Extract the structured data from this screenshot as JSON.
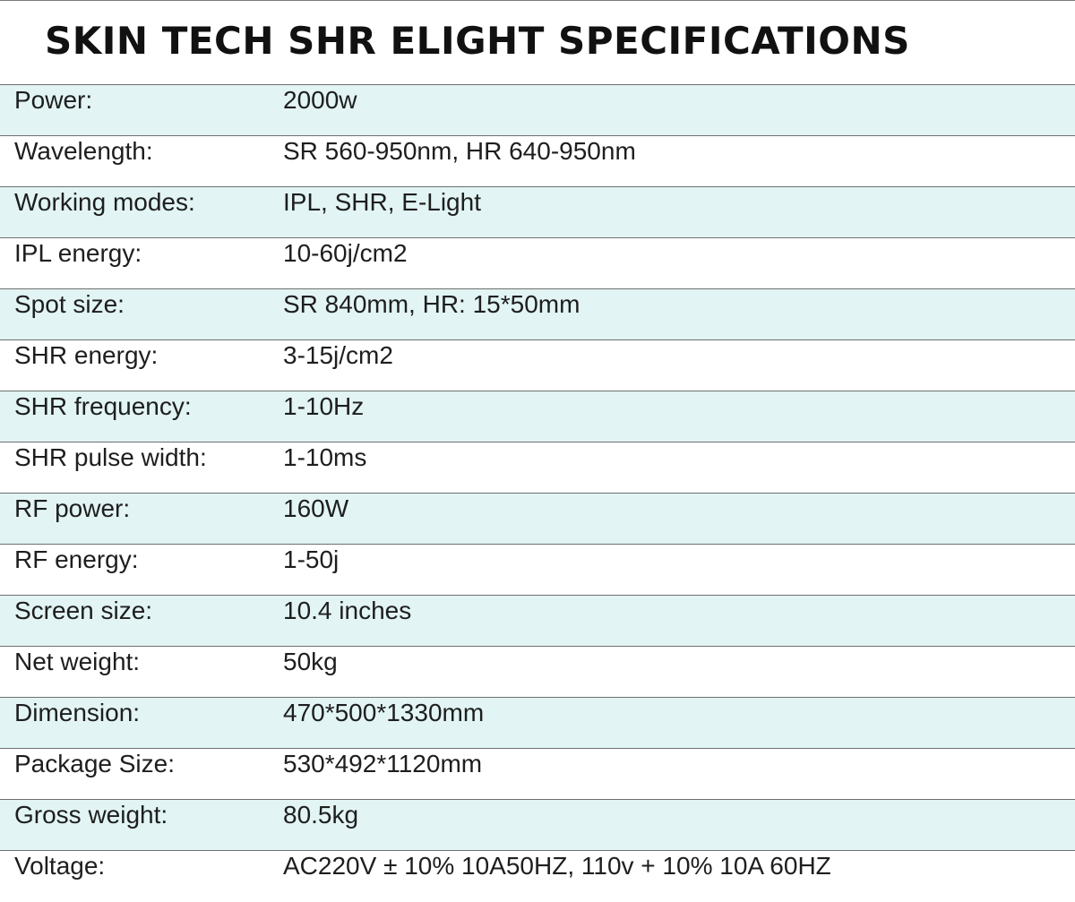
{
  "title": "SKIN TECH SHR ELIGHT SPECIFICATIONS",
  "specs": [
    {
      "label": "Power:",
      "value": "2000w"
    },
    {
      "label": "Wavelength:",
      "value": "SR 560-950nm,  HR 640-950nm"
    },
    {
      "label": "Working modes:",
      "value": "IPL, SHR, E-Light"
    },
    {
      "label": "IPL energy:",
      "value": "10-60j/cm2"
    },
    {
      "label": "Spot size:",
      "value": "SR 840mm, HR: 15*50mm"
    },
    {
      "label": "SHR energy:",
      "value": "3-15j/cm2"
    },
    {
      "label": "SHR frequency:",
      "value": "1-10Hz"
    },
    {
      "label": "SHR pulse width:",
      "value": "1-10ms"
    },
    {
      "label": "RF power:",
      "value": "160W"
    },
    {
      "label": "RF energy:",
      "value": "1-50j"
    },
    {
      "label": "Screen size:",
      "value": "10.4 inches"
    },
    {
      "label": "Net weight:",
      "value": "50kg"
    },
    {
      "label": "Dimension:",
      "value": "470*500*1330mm"
    },
    {
      "label": "Package Size:",
      "value": "530*492*1120mm"
    },
    {
      "label": "Gross weight:",
      "value": "80.5kg"
    },
    {
      "label": "Voltage:",
      "value": "AC220V ± 10%   10A50HZ, 110v + 10%  10A 60HZ"
    }
  ],
  "colors": {
    "row_tint": "#e2f4f4",
    "row_plain": "#ffffff",
    "rule": "#6f6f6f"
  }
}
